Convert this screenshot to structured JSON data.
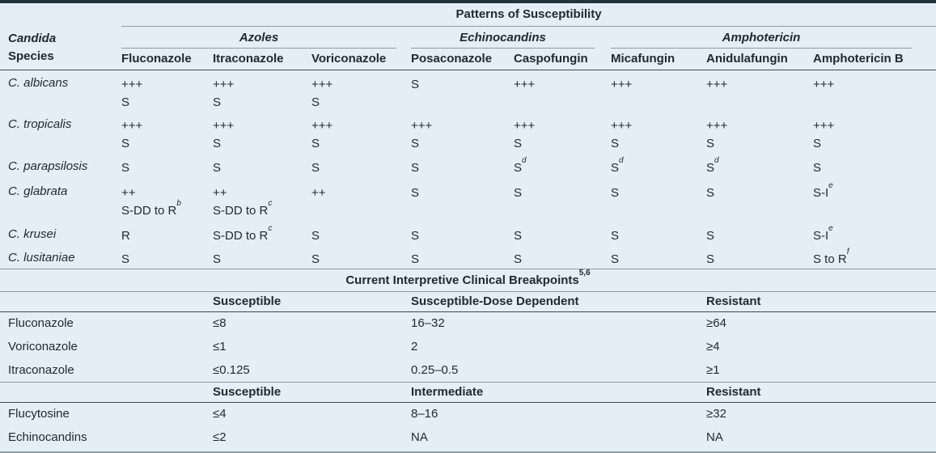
{
  "colors": {
    "background": "#e4eef7",
    "top_border": "#22323c",
    "dark_rule": "#3e4b53",
    "gray_rule": "#8f9aa1",
    "text": "#212a30"
  },
  "patterns_table": {
    "title": "Patterns of Susceptibility",
    "species_header": {
      "line1": "Candida",
      "line2": "Species"
    },
    "groups": [
      {
        "label": "Azoles"
      },
      {
        "label": "Echinocandins"
      },
      {
        "label": "Amphotericin"
      }
    ],
    "drug_columns": [
      "Fluconazole",
      "Itraconazole",
      "Voriconazole",
      "Posaconazole",
      "Caspofungin",
      "Micafungin",
      "Anidulafungin",
      "Amphotericin B"
    ],
    "rows": [
      {
        "species": "C. albicans",
        "cells": [
          "+++\nS",
          "+++\nS",
          "+++\nS",
          "S",
          "+++",
          "+++",
          "+++",
          "+++"
        ]
      },
      {
        "species": "C. tropicalis",
        "cells": [
          "+++\nS",
          "+++\nS",
          "+++\nS",
          "+++\nS",
          "+++\nS",
          "+++\nS",
          "+++\nS",
          "+++\nS"
        ]
      },
      {
        "species": "C. parapsilosis",
        "cells": [
          "S",
          "S",
          "S",
          "S",
          "S^d",
          "S^d",
          "S^d",
          "S"
        ]
      },
      {
        "species": "C. glabrata",
        "cells": [
          "++\nS-DD to R^b",
          "++\nS-DD to R^c",
          "++",
          "S",
          "S",
          "S",
          "S",
          "S-I^e"
        ]
      },
      {
        "species": "C. krusei",
        "cells": [
          "R",
          "S-DD to R^c",
          "S",
          "S",
          "S",
          "S",
          "S",
          "S-I^e"
        ]
      },
      {
        "species": "C. lusitaniae",
        "cells": [
          "S",
          "S",
          "S",
          "S",
          "S",
          "S",
          "S",
          "S to R^f"
        ]
      }
    ]
  },
  "breakpoints_table": {
    "title": "Current Interpretive Clinical Breakpoints",
    "title_superscript": "5,6",
    "sections": [
      {
        "column_headers": [
          "Susceptible",
          "Susceptible-Dose Dependent",
          "Resistant"
        ],
        "rows": [
          {
            "label": "Fluconazole",
            "values": [
              "≤8",
              "16–32",
              "≥64"
            ]
          },
          {
            "label": "Voriconazole",
            "values": [
              "≤1",
              "2",
              "≥4"
            ]
          },
          {
            "label": "Itraconazole",
            "values": [
              "≤0.125",
              "0.25–0.5",
              "≥1"
            ]
          }
        ]
      },
      {
        "column_headers": [
          "Susceptible",
          "Intermediate",
          "Resistant"
        ],
        "rows": [
          {
            "label": "Flucytosine",
            "values": [
              "≤4",
              "8–16",
              "≥32"
            ]
          },
          {
            "label": "Echinocandins",
            "values": [
              "≤2",
              "NA",
              "NA"
            ]
          }
        ]
      }
    ]
  }
}
